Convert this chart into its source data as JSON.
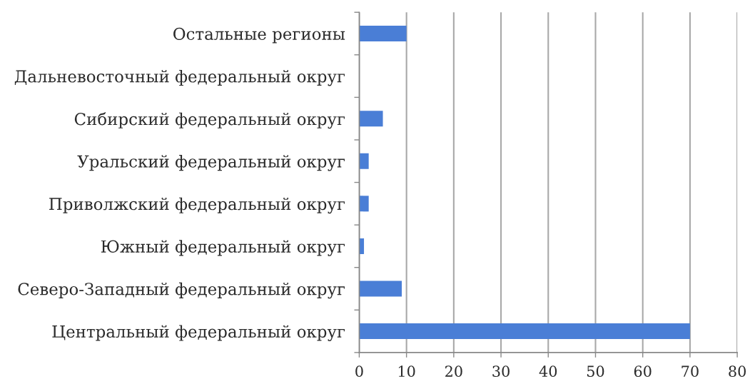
{
  "chart_data": {
    "type": "bar",
    "orientation": "horizontal",
    "categories": [
      "Остальные регионы",
      "Дальневосточный федеральный округ",
      "Сибирский федеральный округ",
      "Уральский федеральный округ",
      "Приволжский федеральный округ",
      "Южный федеральный округ",
      "Северо-Западный федеральный округ",
      "Центральный федеральный округ"
    ],
    "values": [
      10,
      0,
      5,
      2,
      2,
      1,
      9,
      70
    ],
    "color": "#4a7ed6",
    "xlim": [
      0,
      80
    ],
    "xticks": [
      0,
      10,
      20,
      30,
      40,
      50,
      60,
      70,
      80
    ],
    "grid": "x"
  }
}
